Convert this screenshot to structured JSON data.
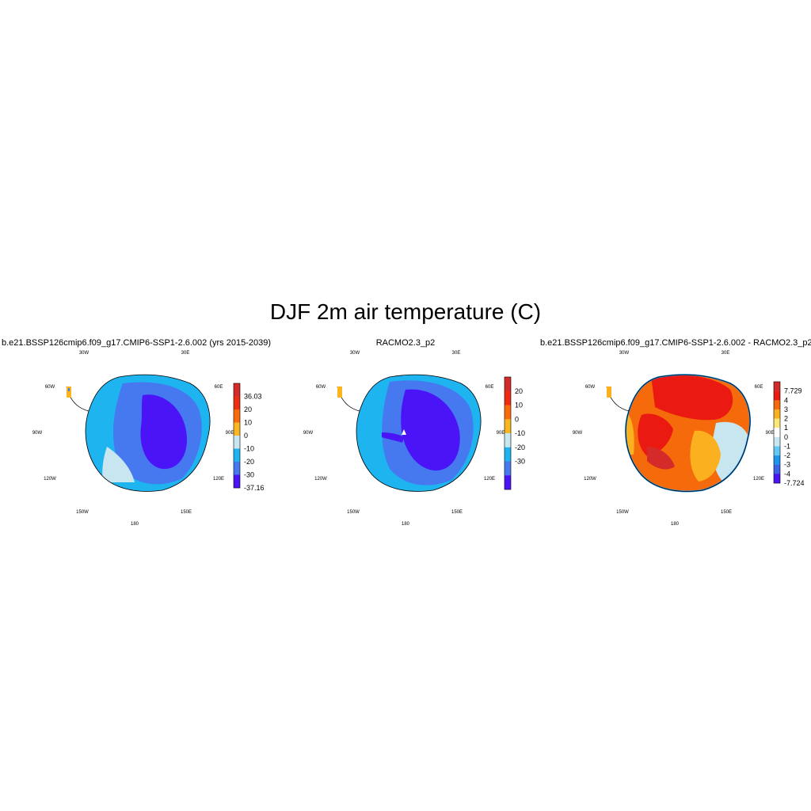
{
  "title": "DJF 2m air temperature (C)",
  "panels": [
    {
      "title": "b.e21.BSSP126cmip6.f09_g17.CMIP6-SSP1-2.6.002 (yrs 2015-2039)",
      "lon_labels": [
        "30W",
        "30E",
        "60W",
        "60E",
        "90W",
        "90E",
        "120W",
        "120E",
        "150W",
        "150E",
        "180"
      ],
      "colorbar": {
        "labels": [
          "36.03",
          "20",
          "10",
          "0",
          "-10",
          "-20",
          "-30",
          "-37.16"
        ],
        "colors": [
          "#d42a2a",
          "#ef2c12",
          "#fb6a0a",
          "#fbb51e",
          "#c8e6f0",
          "#1eb4f0",
          "#4678f0",
          "#4a14f6"
        ]
      }
    },
    {
      "title": "RACMO2.3_p2",
      "lon_labels": [
        "30W",
        "30E",
        "60W",
        "60E",
        "90W",
        "90E",
        "120W",
        "120E",
        "150W",
        "150E",
        "180"
      ],
      "colorbar": {
        "labels": [
          "20",
          "10",
          "0",
          "-10",
          "-20",
          "-30"
        ],
        "colors": [
          "#d42a2a",
          "#ef2c12",
          "#fb6a0a",
          "#fbb51e",
          "#c8e6f0",
          "#1eb4f0",
          "#4678f0",
          "#4a14f6"
        ]
      }
    },
    {
      "title": "b.e21.BSSP126cmip6.f09_g17.CMIP6-SSP1-2.6.002 - RACMO2.3_p2",
      "lon_labels": [
        "30W",
        "30E",
        "60W",
        "60E",
        "90W",
        "90E",
        "120W",
        "120E",
        "150W",
        "150E",
        "180"
      ],
      "colorbar": {
        "labels": [
          "7.729",
          "4",
          "3",
          "2",
          "1",
          "0",
          "-1",
          "-2",
          "-3",
          "-4",
          "-7.724"
        ],
        "colors": [
          "#d42a2a",
          "#ea1a12",
          "#f56a0a",
          "#fbb020",
          "#fbe878",
          "#ffffff",
          "#c8e6f0",
          "#64c8f5",
          "#1e96f0",
          "#3c64e6",
          "#4a14f6"
        ]
      }
    }
  ]
}
